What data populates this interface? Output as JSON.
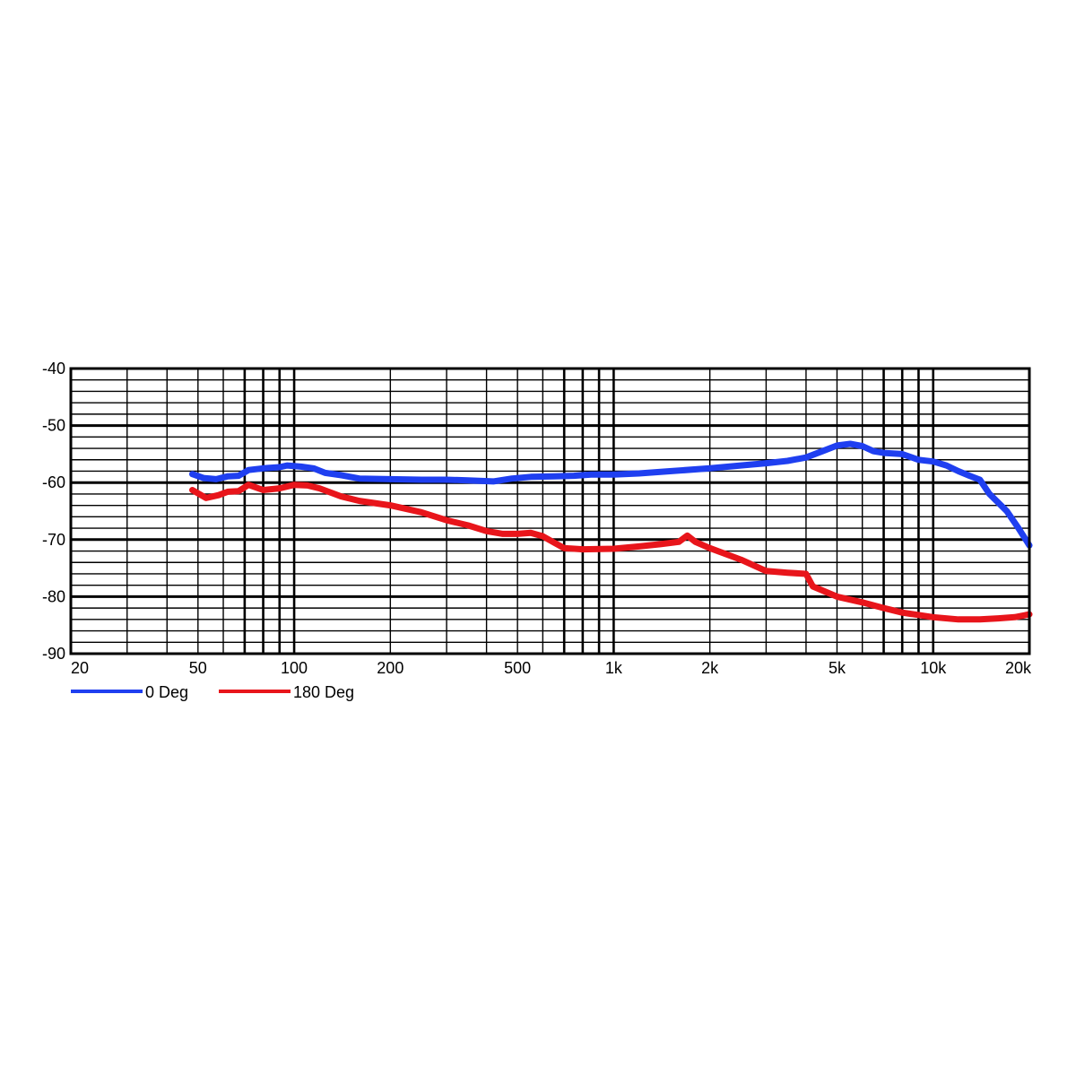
{
  "chart_data": {
    "type": "line",
    "title": "",
    "xlabel": "",
    "ylabel": "",
    "x_scale": "log",
    "xlim": [
      20,
      20000
    ],
    "ylim": [
      -90,
      -40
    ],
    "grid": true,
    "legend_position": "bottom-left",
    "x_ticks": [
      {
        "value": 20,
        "label": "20"
      },
      {
        "value": 50,
        "label": "50"
      },
      {
        "value": 100,
        "label": "100"
      },
      {
        "value": 200,
        "label": "200"
      },
      {
        "value": 500,
        "label": "500"
      },
      {
        "value": 1000,
        "label": "1k"
      },
      {
        "value": 2000,
        "label": "2k"
      },
      {
        "value": 5000,
        "label": "5k"
      },
      {
        "value": 10000,
        "label": "10k"
      },
      {
        "value": 20000,
        "label": "20k"
      }
    ],
    "y_ticks": [
      {
        "value": -40,
        "label": "-40"
      },
      {
        "value": -50,
        "label": "-50"
      },
      {
        "value": -60,
        "label": "-60"
      },
      {
        "value": -70,
        "label": "-70"
      },
      {
        "value": -80,
        "label": "-80"
      },
      {
        "value": -90,
        "label": "-90"
      }
    ],
    "series": [
      {
        "name": "0 Deg",
        "color": "#1f3ff0",
        "points": [
          [
            48,
            -58.5
          ],
          [
            52,
            -59.2
          ],
          [
            57,
            -59.4
          ],
          [
            62,
            -58.9
          ],
          [
            67,
            -58.8
          ],
          [
            72,
            -57.8
          ],
          [
            80,
            -57.5
          ],
          [
            90,
            -57.3
          ],
          [
            95,
            -57.0
          ],
          [
            105,
            -57.2
          ],
          [
            115,
            -57.5
          ],
          [
            125,
            -58.3
          ],
          [
            140,
            -58.7
          ],
          [
            160,
            -59.3
          ],
          [
            200,
            -59.4
          ],
          [
            250,
            -59.5
          ],
          [
            300,
            -59.5
          ],
          [
            350,
            -59.6
          ],
          [
            420,
            -59.8
          ],
          [
            480,
            -59.3
          ],
          [
            550,
            -59.0
          ],
          [
            650,
            -58.9
          ],
          [
            750,
            -58.8
          ],
          [
            850,
            -58.6
          ],
          [
            1000,
            -58.6
          ],
          [
            1200,
            -58.4
          ],
          [
            1500,
            -58.0
          ],
          [
            2000,
            -57.5
          ],
          [
            2500,
            -57.0
          ],
          [
            3000,
            -56.6
          ],
          [
            3500,
            -56.2
          ],
          [
            4000,
            -55.6
          ],
          [
            4500,
            -54.5
          ],
          [
            5000,
            -53.5
          ],
          [
            5500,
            -53.2
          ],
          [
            6000,
            -53.6
          ],
          [
            6500,
            -54.5
          ],
          [
            7000,
            -54.8
          ],
          [
            8000,
            -55.0
          ],
          [
            9000,
            -56.0
          ],
          [
            10000,
            -56.3
          ],
          [
            11000,
            -57.0
          ],
          [
            12000,
            -58.0
          ],
          [
            13000,
            -58.8
          ],
          [
            14000,
            -59.5
          ],
          [
            15000,
            -62.0
          ],
          [
            17000,
            -65.0
          ],
          [
            18500,
            -68.0
          ],
          [
            20000,
            -71.0
          ]
        ]
      },
      {
        "name": "180 Deg",
        "color": "#e8151b",
        "points": [
          [
            48,
            -61.3
          ],
          [
            53,
            -62.7
          ],
          [
            58,
            -62.2
          ],
          [
            62,
            -61.6
          ],
          [
            67,
            -61.5
          ],
          [
            72,
            -60.4
          ],
          [
            80,
            -61.3
          ],
          [
            90,
            -61.0
          ],
          [
            100,
            -60.4
          ],
          [
            110,
            -60.5
          ],
          [
            120,
            -61.0
          ],
          [
            140,
            -62.4
          ],
          [
            160,
            -63.2
          ],
          [
            200,
            -64.0
          ],
          [
            250,
            -65.2
          ],
          [
            300,
            -66.6
          ],
          [
            350,
            -67.5
          ],
          [
            400,
            -68.5
          ],
          [
            450,
            -69.0
          ],
          [
            500,
            -69.0
          ],
          [
            550,
            -68.8
          ],
          [
            600,
            -69.4
          ],
          [
            650,
            -70.5
          ],
          [
            700,
            -71.5
          ],
          [
            800,
            -71.7
          ],
          [
            1000,
            -71.6
          ],
          [
            1200,
            -71.2
          ],
          [
            1400,
            -70.8
          ],
          [
            1600,
            -70.4
          ],
          [
            1700,
            -69.3
          ],
          [
            1800,
            -70.4
          ],
          [
            2000,
            -71.5
          ],
          [
            2500,
            -73.5
          ],
          [
            3000,
            -75.5
          ],
          [
            3500,
            -75.8
          ],
          [
            4000,
            -76.0
          ],
          [
            4200,
            -78.2
          ],
          [
            5000,
            -80.0
          ],
          [
            6000,
            -81.0
          ],
          [
            7000,
            -82.0
          ],
          [
            8000,
            -82.8
          ],
          [
            10000,
            -83.6
          ],
          [
            12000,
            -84.0
          ],
          [
            14000,
            -84.0
          ],
          [
            16000,
            -83.8
          ],
          [
            18000,
            -83.6
          ],
          [
            20000,
            -83.1
          ]
        ]
      }
    ]
  }
}
